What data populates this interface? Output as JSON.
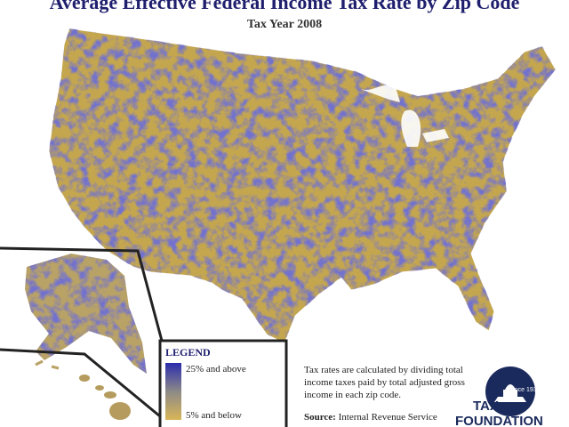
{
  "header": {
    "title": "Average Effective Federal Income Tax Rate by Zip Code",
    "subtitle": "Tax Year 2008"
  },
  "legend": {
    "title": "LEGEND",
    "high": "25% and above",
    "low": "5% and below"
  },
  "note": {
    "lines": [
      "Tax rates are calculated by dividing total",
      "income taxes paid by total adjusted gross",
      "income in each zip code."
    ]
  },
  "source": {
    "label": "Source:",
    "text": "Internal Revenue Service"
  },
  "logo": {
    "since": "Since 1937",
    "line1": "TAX",
    "line2": "FOUNDATION"
  }
}
